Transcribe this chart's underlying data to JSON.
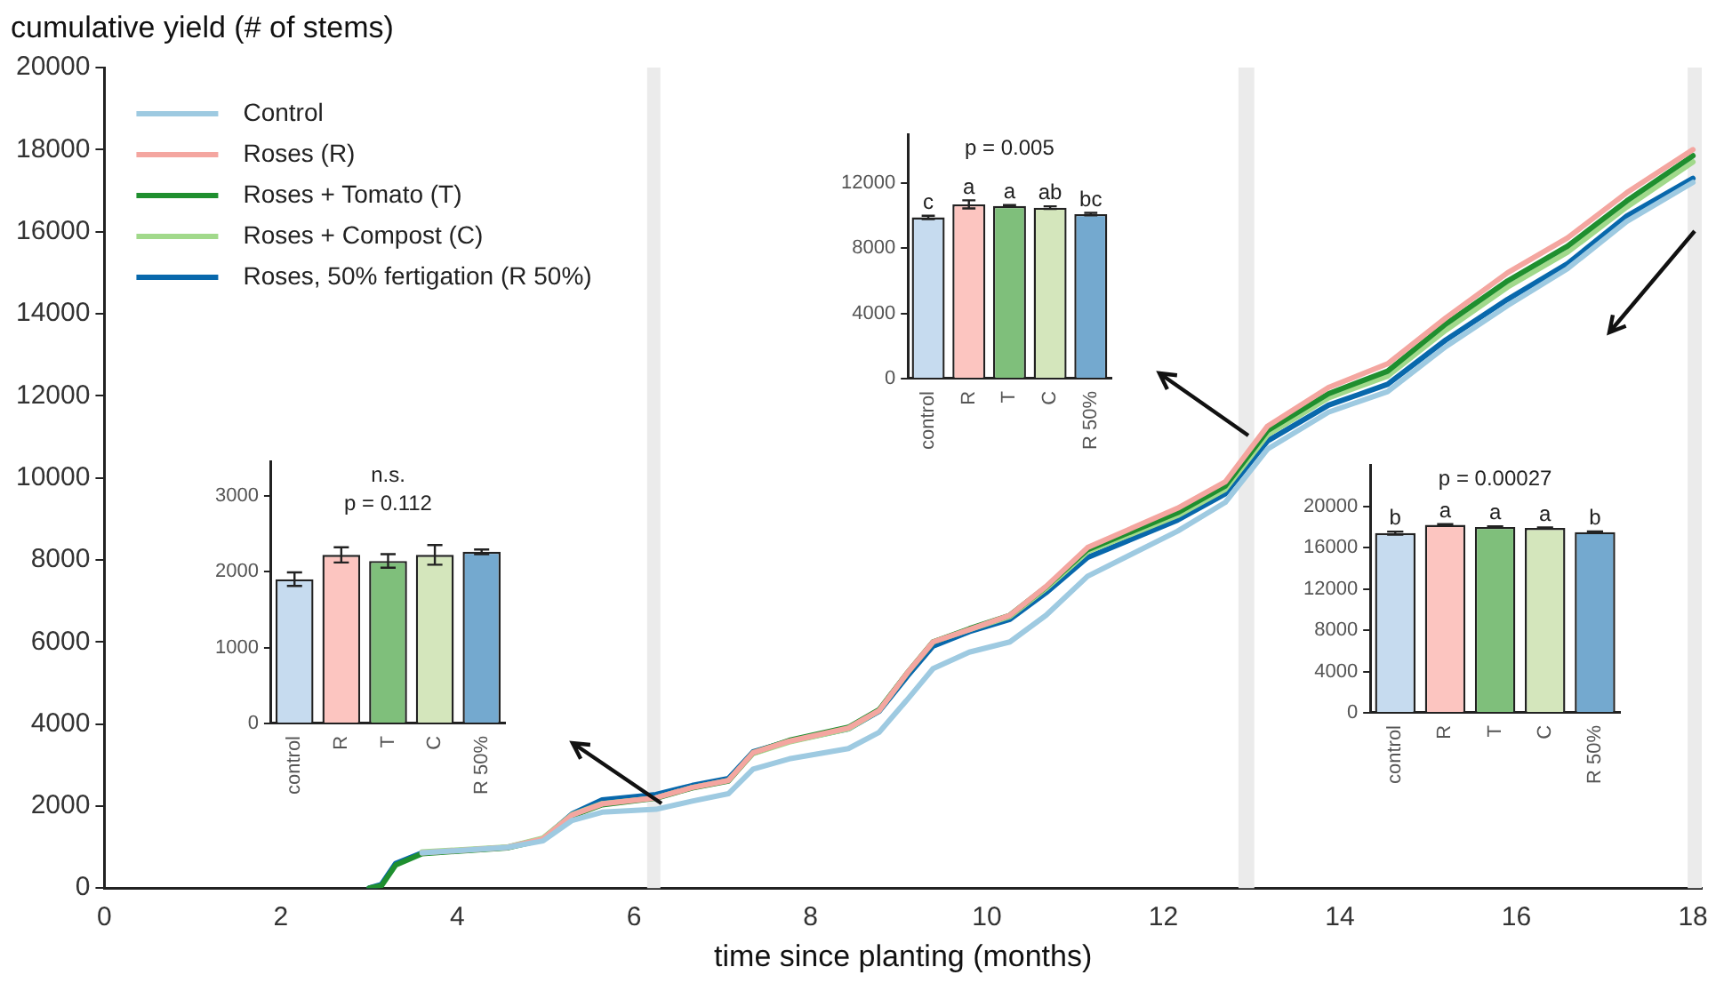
{
  "chart_data": [
    {
      "type": "line",
      "ylabel": "cumulative yield (# of stems)",
      "xlabel": "time since planting (months)",
      "xlim": [
        0,
        18.1
      ],
      "xticks": [
        0,
        2,
        4,
        6,
        8,
        10,
        12,
        14,
        16,
        18
      ],
      "ylim": [
        0,
        20000
      ],
      "yticks": [
        0,
        2000,
        4000,
        6000,
        8000,
        10000,
        12000,
        14000,
        16000,
        18000,
        20000
      ],
      "grid": false,
      "legend": "top left",
      "marker": "none",
      "line_style": "solid",
      "x": [
        3.0,
        3.14,
        3.3,
        3.6,
        4.56,
        4.97,
        5.3,
        5.64,
        6.25,
        6.66,
        7.07,
        7.35,
        7.76,
        8.43,
        8.78,
        9.1,
        9.39,
        9.8,
        10.26,
        10.67,
        11.14,
        12.16,
        12.7,
        13.18,
        13.87,
        14.54,
        15.2,
        15.9,
        16.58,
        17.25,
        18.0
      ],
      "bands": [
        {
          "axis": "x",
          "from": 6.15,
          "to": 6.3,
          "color": "#ebebeb"
        },
        {
          "axis": "x",
          "from": 12.85,
          "to": 13.03,
          "color": "#ebebeb"
        },
        {
          "axis": "x",
          "from": 17.94,
          "to": 18.1,
          "color": "#ebebeb"
        }
      ],
      "series": [
        {
          "name": "Control",
          "color": "#9ecae1",
          "values": [
            null,
            null,
            null,
            860,
            990,
            1150,
            1650,
            1850,
            1920,
            2120,
            2300,
            2900,
            3150,
            3400,
            3800,
            4600,
            5350,
            5750,
            6000,
            6650,
            7600,
            8700,
            9400,
            10700,
            11600,
            12100,
            13200,
            14200,
            15100,
            16250,
            17200
          ]
        },
        {
          "name": "Roses (R)",
          "color": "#f4a6a0",
          "values": [
            null,
            null,
            null,
            860,
            990,
            1200,
            1780,
            2050,
            2200,
            2450,
            2620,
            3300,
            3580,
            3900,
            4330,
            5250,
            6000,
            6300,
            6650,
            7350,
            8300,
            9260,
            9900,
            11260,
            12200,
            12780,
            13900,
            15000,
            15850,
            16950,
            18000
          ]
        },
        {
          "name": "Roses + Tomato (T)",
          "color": "#1f8f2f",
          "values": [
            0,
            60,
            560,
            840,
            980,
            1180,
            1760,
            2030,
            2190,
            2440,
            2610,
            3300,
            3600,
            3920,
            4350,
            5250,
            6000,
            6320,
            6650,
            7340,
            8250,
            9150,
            9800,
            11150,
            12050,
            12600,
            13750,
            14800,
            15650,
            16750,
            17850
          ]
        },
        {
          "name": "Roses + Compost (C)",
          "color": "#a1d98b",
          "values": [
            null,
            null,
            null,
            880,
            1000,
            1220,
            1790,
            2060,
            2200,
            2450,
            2620,
            3280,
            3560,
            3880,
            4330,
            5250,
            6000,
            6300,
            6620,
            7300,
            8200,
            9080,
            9720,
            11050,
            11950,
            12480,
            13600,
            14650,
            15500,
            16600,
            17700
          ]
        },
        {
          "name": "Roses, 50% fertigation (R 50%)",
          "color": "#0868ac",
          "values": [
            0,
            90,
            600,
            860,
            990,
            1200,
            1810,
            2150,
            2280,
            2500,
            2670,
            3320,
            3580,
            3880,
            4310,
            5170,
            5900,
            6250,
            6550,
            7200,
            8060,
            8970,
            9610,
            10900,
            11770,
            12280,
            13360,
            14350,
            15220,
            16380,
            17300
          ]
        }
      ]
    },
    {
      "type": "bar",
      "categories": [
        "control",
        "R",
        "T",
        "C",
        "R 50%"
      ],
      "values": [
        1900,
        2220,
        2140,
        2220,
        2260
      ],
      "errors": [
        90,
        100,
        90,
        130,
        30
      ],
      "colors": [
        "#c6dbef",
        "#fcc5c0",
        "#7fbf7b",
        "#d4e6bc",
        "#74a9cf"
      ],
      "ylim": [
        0,
        3450
      ],
      "yticks": [
        0,
        1000,
        2000,
        3000
      ],
      "grid": false,
      "annotations": [
        "n.s.",
        "p = 0.112"
      ]
    },
    {
      "type": "bar",
      "categories": [
        "control",
        "R",
        "T",
        "C",
        "R 50%"
      ],
      "values": [
        9900,
        10700,
        10600,
        10500,
        10100
      ],
      "errors": [
        100,
        250,
        60,
        80,
        80
      ],
      "colors": [
        "#c6dbef",
        "#fcc5c0",
        "#7fbf7b",
        "#d4e6bc",
        "#74a9cf"
      ],
      "ylim": [
        0,
        15000
      ],
      "yticks": [
        0,
        4000,
        8000,
        12000
      ],
      "grid": false,
      "annotations": [
        "p = 0.005",
        {
          "text": "c",
          "x": "control",
          "y": 10000
        },
        {
          "text": "a",
          "x": "R",
          "y": 10950
        },
        {
          "text": "a",
          "x": "T",
          "y": 10700
        },
        {
          "text": "ab",
          "x": "C",
          "y": 10600
        },
        {
          "text": "bc",
          "x": "R 50%",
          "y": 10200
        }
      ]
    },
    {
      "type": "bar",
      "categories": [
        "control",
        "R",
        "T",
        "C",
        "R 50%"
      ],
      "values": [
        17400,
        18200,
        18000,
        17900,
        17500
      ],
      "errors": [
        150,
        80,
        60,
        60,
        60
      ],
      "colors": [
        "#c6dbef",
        "#fcc5c0",
        "#7fbf7b",
        "#d4e6bc",
        "#74a9cf"
      ],
      "ylim": [
        0,
        24000
      ],
      "yticks": [
        0,
        4000,
        8000,
        12000,
        16000,
        20000
      ],
      "grid": false,
      "annotations": [
        "p = 0.00027",
        {
          "text": "b",
          "x": "control",
          "y": 17600
        },
        {
          "text": "a",
          "x": "R",
          "y": 18300
        },
        {
          "text": "a",
          "x": "T",
          "y": 18100
        },
        {
          "text": "a",
          "x": "C",
          "y": 18000
        },
        {
          "text": "b",
          "x": "R 50%",
          "y": 17600
        }
      ]
    }
  ]
}
